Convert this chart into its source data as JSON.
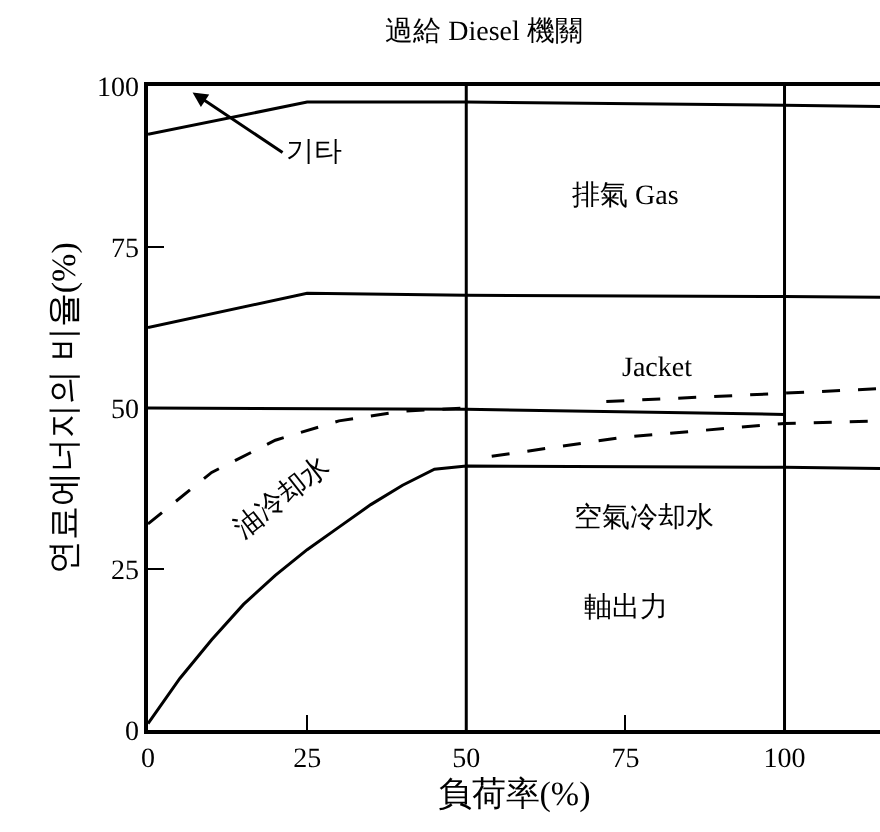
{
  "chart_data": {
    "type": "line",
    "title": "過給 Diesel 機關",
    "xlabel": "負荷率(%)",
    "ylabel": "연료에너지의 비율(%)",
    "xlim": [
      0,
      115
    ],
    "ylim": [
      0,
      100
    ],
    "xticks": [
      0,
      25,
      50,
      75,
      100
    ],
    "yticks": [
      0,
      25,
      50,
      75,
      100
    ],
    "grid": false,
    "marker": "none",
    "ref_lines": [
      {
        "axis": "x",
        "value": 50
      },
      {
        "axis": "x",
        "value": 100
      }
    ],
    "series": [
      {
        "color": "#000000",
        "line_style": "solid",
        "x": [
          0,
          25,
          50,
          100,
          115
        ],
        "values": [
          92.5,
          97.5,
          97.5,
          97,
          96.8
        ]
      },
      {
        "color": "#000000",
        "line_style": "solid",
        "x": [
          0,
          25,
          50,
          100,
          115
        ],
        "values": [
          62.5,
          67.8,
          67.5,
          67.3,
          67.2
        ]
      },
      {
        "color": "#000000",
        "line_style": "solid",
        "x": [
          0,
          50,
          100
        ],
        "values": [
          50,
          49.8,
          49
        ]
      },
      {
        "color": "#000000",
        "line_style": "dashed",
        "x": [
          72,
          100,
          115
        ],
        "values": [
          51,
          52.3,
          53
        ]
      },
      {
        "color": "#000000",
        "line_style": "dashed",
        "x": [
          0,
          10,
          20,
          30,
          40,
          50
        ],
        "values": [
          32,
          40,
          45,
          48,
          49.5,
          50
        ]
      },
      {
        "color": "#000000",
        "line_style": "dashed",
        "x": [
          54,
          75,
          100,
          115
        ],
        "values": [
          42.5,
          45.5,
          47.6,
          48
        ]
      },
      {
        "color": "#000000",
        "line_style": "solid",
        "x": [
          0,
          5,
          10,
          15,
          20,
          25,
          30,
          35,
          40,
          45,
          50,
          100,
          115
        ],
        "values": [
          1,
          8,
          14,
          19.5,
          24,
          28,
          31.5,
          35,
          38,
          40.5,
          41,
          40.8,
          40.6
        ]
      }
    ],
    "annotations": [
      "기타",
      "排氣 Gas",
      "Jacket",
      "油冷却水",
      "空氣冷却水",
      "軸出力"
    ]
  }
}
